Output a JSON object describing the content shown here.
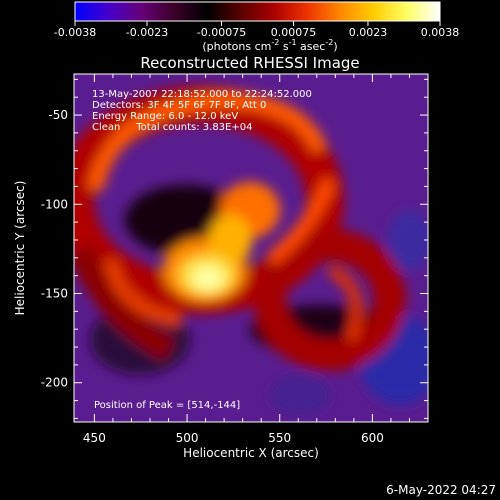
{
  "colorbar": {
    "ticks": [
      "-0.0038",
      "-0.0023",
      "-0.00075",
      "0.00075",
      "0.0023",
      "0.0038"
    ],
    "tick_values": [
      -0.0038,
      -0.0023,
      -0.00075,
      0.00075,
      0.0023,
      0.0038
    ],
    "range": [
      -0.0038,
      0.0038
    ],
    "unit_base": "(photons cm",
    "unit_exp1": "-2",
    "unit_mid": " s",
    "unit_exp2": "-1",
    "unit_mid2": " asec",
    "unit_exp3": "-2",
    "unit_end": ")",
    "colors": [
      "#0000ff",
      "#4400cc",
      "#660077",
      "#3a0028",
      "#000000",
      "#5a0000",
      "#aa0000",
      "#ee3300",
      "#ff8800",
      "#ffcc00",
      "#ffff66",
      "#ffffff"
    ]
  },
  "chart_data": {
    "type": "heatmap",
    "title": "Reconstructed RHESSI Image",
    "xlabel": "Heliocentric X (arcsec)",
    "ylabel": "Heliocentric Y (arcsec)",
    "xlim": [
      439,
      630
    ],
    "ylim": [
      -222,
      -27
    ],
    "x_ticks": [
      450,
      500,
      550,
      600
    ],
    "y_ticks": [
      -50,
      -100,
      -150,
      -200
    ],
    "annotations": [
      "13-May-2007 22:18:52.000 to 22:24:52.000",
      "Detectors: 3F 4F 5F 6F 7F 8F, Att 0",
      "Energy Range: 6.0 - 12.0 keV",
      "Clean     Total counts: 3.83E+04"
    ],
    "peak_label": "Position of Peak = [514,-144]",
    "peak_position": [
      514,
      -144
    ],
    "background_colors": {
      "negative": "#5a1d8f",
      "deep_negative": "#2a2aa8"
    }
  },
  "footer": {
    "timestamp": "6-May-2022 04:27"
  }
}
